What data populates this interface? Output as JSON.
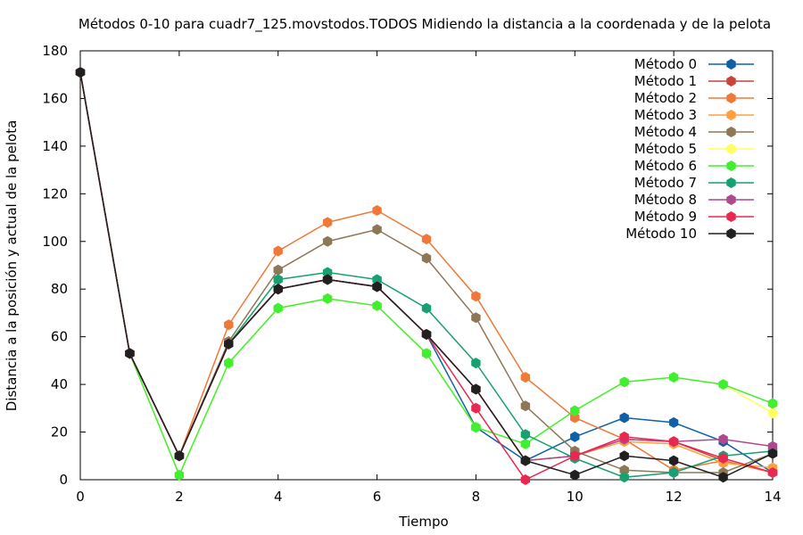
{
  "chart_data": {
    "type": "line",
    "title": "Métodos 0-10 para cuadr7_125.movstodos.TODOS Midiendo la distancia a la coordenada y de la pelota",
    "xlabel": "Tiempo",
    "ylabel": "Distancia a la posición y actual de la pelota",
    "xlim": [
      0,
      14
    ],
    "ylim": [
      0,
      180
    ],
    "xticks": [
      0,
      2,
      4,
      6,
      8,
      10,
      12,
      14
    ],
    "yticks": [
      0,
      20,
      40,
      60,
      80,
      100,
      120,
      140,
      160,
      180
    ],
    "grid": false,
    "legend_position": "top-right",
    "x": [
      0,
      1,
      2,
      3,
      4,
      5,
      6,
      7,
      8,
      9,
      10,
      11,
      12,
      13,
      14
    ],
    "series": [
      {
        "name": "Método 0",
        "color": "#1060a8",
        "values": [
          171,
          53,
          10,
          57,
          80,
          84,
          81,
          61,
          22,
          8,
          18,
          26,
          24,
          16,
          3
        ]
      },
      {
        "name": "Método 1",
        "color": "#c8443c",
        "values": [
          171,
          53,
          10,
          57,
          80,
          84,
          81,
          61,
          38,
          8,
          10,
          17,
          16,
          8,
          3
        ]
      },
      {
        "name": "Método 2",
        "color": "#f07838",
        "values": [
          171,
          53,
          10,
          65,
          96,
          108,
          113,
          101,
          77,
          43,
          26,
          17,
          4,
          8,
          3
        ]
      },
      {
        "name": "Método 3",
        "color": "#ffa040",
        "values": [
          171,
          53,
          10,
          57,
          80,
          84,
          81,
          61,
          38,
          8,
          10,
          16,
          15,
          7,
          5
        ]
      },
      {
        "name": "Método 4",
        "color": "#8c7856",
        "values": [
          171,
          53,
          10,
          58,
          88,
          100,
          105,
          93,
          68,
          31,
          12,
          4,
          3,
          3,
          11
        ]
      },
      {
        "name": "Método 5",
        "color": "#ffff60",
        "values": [
          171,
          53,
          2,
          49,
          72,
          76,
          73,
          53,
          22,
          15,
          29,
          41,
          43,
          40,
          28
        ]
      },
      {
        "name": "Método 6",
        "color": "#40f030",
        "values": [
          171,
          53,
          2,
          49,
          72,
          76,
          73,
          53,
          22,
          15,
          29,
          41,
          43,
          40,
          32
        ]
      },
      {
        "name": "Método 7",
        "color": "#18a070",
        "values": [
          171,
          53,
          10,
          57,
          84,
          87,
          84,
          72,
          49,
          19,
          9,
          1,
          3,
          10,
          12
        ]
      },
      {
        "name": "Método 8",
        "color": "#b04890",
        "values": [
          171,
          53,
          10,
          57,
          80,
          84,
          81,
          61,
          38,
          8,
          10,
          17,
          16,
          17,
          14
        ]
      },
      {
        "name": "Método 9",
        "color": "#e82850",
        "values": [
          171,
          53,
          10,
          57,
          80,
          84,
          81,
          61,
          30,
          0,
          10,
          18,
          16,
          9,
          3
        ]
      },
      {
        "name": "Método 10",
        "color": "#202020",
        "values": [
          171,
          53,
          10,
          57,
          80,
          84,
          81,
          61,
          38,
          8,
          2,
          10,
          8,
          1,
          11
        ]
      }
    ]
  }
}
